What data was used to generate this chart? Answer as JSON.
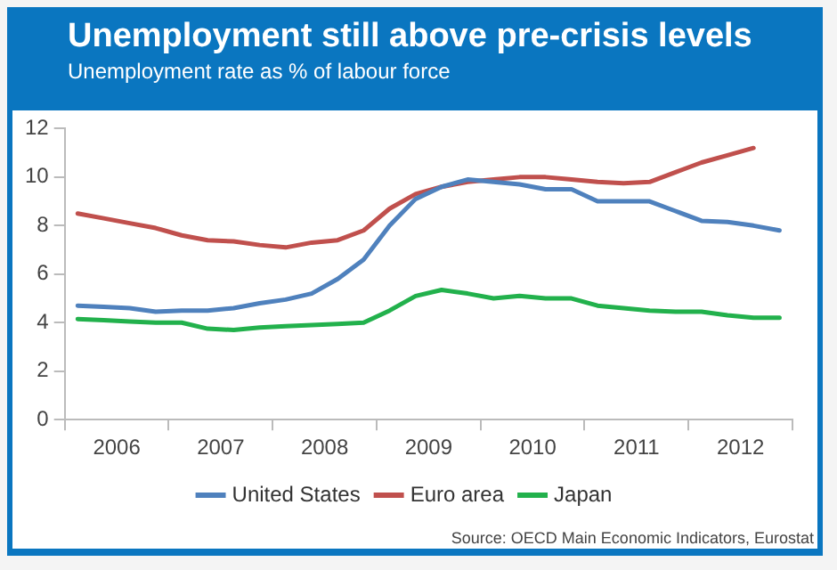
{
  "chart_data": {
    "type": "line",
    "title": "Unemployment still above pre-crisis levels",
    "subtitle": "Unemployment rate as % of labour force",
    "x": [
      2006.125,
      2006.375,
      2006.625,
      2006.875,
      2007.125,
      2007.375,
      2007.625,
      2007.875,
      2008.125,
      2008.375,
      2008.625,
      2008.875,
      2009.125,
      2009.375,
      2009.625,
      2009.875,
      2010.125,
      2010.375,
      2010.625,
      2010.875,
      2011.125,
      2011.375,
      2011.625,
      2011.875,
      2012.125,
      2012.375,
      2012.625,
      2012.875
    ],
    "series": [
      {
        "name": "United States",
        "color": "#4f81bd",
        "values": [
          4.7,
          4.65,
          4.6,
          4.45,
          4.5,
          4.5,
          4.6,
          4.8,
          4.95,
          5.2,
          5.8,
          6.6,
          8.0,
          9.1,
          9.6,
          9.9,
          9.8,
          9.7,
          9.5,
          9.5,
          9.0,
          9.0,
          9.0,
          8.6,
          8.2,
          8.15,
          8.0,
          7.8
        ]
      },
      {
        "name": "Euro area",
        "color": "#c0504d",
        "values": [
          8.5,
          8.3,
          8.1,
          7.9,
          7.6,
          7.4,
          7.35,
          7.2,
          7.1,
          7.3,
          7.4,
          7.8,
          8.7,
          9.3,
          9.6,
          9.8,
          9.9,
          10.0,
          10.0,
          9.9,
          9.8,
          9.75,
          9.8,
          10.2,
          10.6,
          10.9,
          11.2,
          null
        ]
      },
      {
        "name": "Japan",
        "color": "#22b14c",
        "values": [
          4.15,
          4.1,
          4.05,
          4.0,
          4.0,
          3.75,
          3.7,
          3.8,
          3.85,
          3.9,
          3.95,
          4.0,
          4.5,
          5.1,
          5.35,
          5.2,
          5.0,
          5.1,
          5.0,
          5.0,
          4.7,
          4.6,
          4.5,
          4.45,
          4.45,
          4.3,
          4.2,
          4.2
        ]
      }
    ],
    "xlim": [
      2006,
      2013
    ],
    "xticks": [
      {
        "value": 2006,
        "label": null
      },
      {
        "value": 2006.5,
        "label": "2006"
      },
      {
        "value": 2007,
        "label": null
      },
      {
        "value": 2007.5,
        "label": "2007"
      },
      {
        "value": 2008,
        "label": null
      },
      {
        "value": 2008.5,
        "label": "2008"
      },
      {
        "value": 2009,
        "label": null
      },
      {
        "value": 2009.5,
        "label": "2009"
      },
      {
        "value": 2010,
        "label": null
      },
      {
        "value": 2010.5,
        "label": "2010"
      },
      {
        "value": 2011,
        "label": null
      },
      {
        "value": 2011.5,
        "label": "2011"
      },
      {
        "value": 2012,
        "label": null
      },
      {
        "value": 2012.5,
        "label": "2012"
      },
      {
        "value": 2013,
        "label": null
      }
    ],
    "ylim": [
      0,
      12
    ],
    "yticks": [
      0,
      2,
      4,
      6,
      8,
      10,
      12
    ],
    "legend": "bottom",
    "marker": "none",
    "line_style": "solid",
    "annotations": [
      "Source: OECD Main Economic Indicators, Eurostat"
    ]
  }
}
